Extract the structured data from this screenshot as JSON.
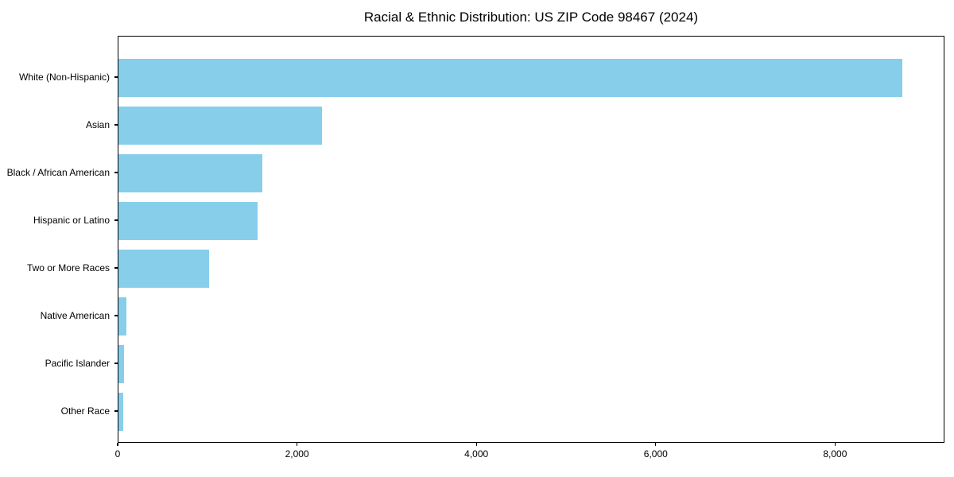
{
  "chart_data": {
    "type": "bar",
    "orientation": "horizontal",
    "title": "Racial & Ethnic Distribution: US ZIP Code 98467 (2024)",
    "categories": [
      "White (Non-Hispanic)",
      "Asian",
      "Black / African American",
      "Hispanic or Latino",
      "Two or More Races",
      "Native American",
      "Pacific Islander",
      "Other Race"
    ],
    "values": [
      8755,
      2270,
      1605,
      1550,
      1010,
      90,
      65,
      55
    ],
    "xlabel": "",
    "ylabel": "",
    "xlim": [
      0,
      9220
    ],
    "xticks": [
      {
        "value": 0,
        "label": "0"
      },
      {
        "value": 2000,
        "label": "2,000"
      },
      {
        "value": 4000,
        "label": "4,000"
      },
      {
        "value": 6000,
        "label": "6,000"
      },
      {
        "value": 8000,
        "label": "8,000"
      }
    ],
    "bar_color": "#87CEEB",
    "background_color": "#FFFFFF",
    "spine_color": "#000000",
    "text_color": "#000000",
    "grid": false,
    "legend": null
  }
}
